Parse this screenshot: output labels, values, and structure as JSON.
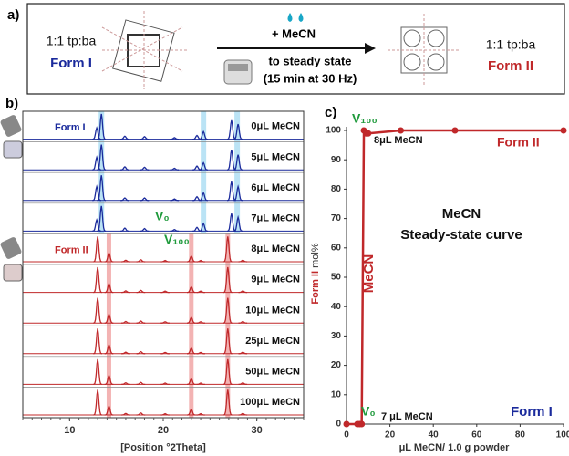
{
  "panel_a": {
    "label": "a)",
    "left": {
      "ratio": "1:1 tp:ba",
      "form": "Form I"
    },
    "arrow": {
      "reagent": "+ MeCN",
      "condition": "to steady state",
      "detail": "(15 min at 30 Hz)"
    },
    "right": {
      "ratio": "1:1 tp:ba",
      "form": "Form II"
    }
  },
  "chart_data": [
    {
      "type": "pxrd",
      "panel_label": "b)",
      "xlabel": "[Position °2Theta]",
      "xlim": [
        5,
        35
      ],
      "xticks": [
        10,
        20,
        30
      ],
      "form_i_bands": [
        13.4,
        24.3,
        27.9
      ],
      "form_i_band_color": "#a9dcf2",
      "form_ii_bands": [
        14.2,
        23.0,
        26.9
      ],
      "form_ii_band_color": "#f0a0a0",
      "annotations": [
        {
          "text": "Form I",
          "color": "#1a2a9c"
        },
        {
          "text": "Form II",
          "color": "#c0282a"
        },
        {
          "text": "V₀",
          "color": "#1f9a3c"
        },
        {
          "text": "V₁₀₀",
          "color": "#1f9a3c"
        }
      ],
      "traces": [
        {
          "name": "0μL MeCN",
          "color": "#1a2a9c",
          "peak_positions": [
            12.9,
            13.4,
            15.9,
            18.0,
            21.2,
            23.6,
            24.3,
            27.3,
            28.0
          ],
          "peak_heights": [
            45,
            100,
            12,
            10,
            6,
            15,
            30,
            75,
            60
          ]
        },
        {
          "name": "5μL MeCN",
          "color": "#1a2a9c",
          "peak_positions": [
            12.9,
            13.4,
            15.9,
            18.0,
            21.2,
            23.6,
            24.3,
            27.3,
            28.0
          ],
          "peak_heights": [
            50,
            100,
            12,
            10,
            6,
            15,
            28,
            80,
            60
          ]
        },
        {
          "name": "6μL MeCN",
          "color": "#1a2a9c",
          "peak_positions": [
            12.9,
            13.4,
            15.9,
            18.0,
            21.2,
            23.6,
            24.3,
            27.3,
            28.0
          ],
          "peak_heights": [
            55,
            100,
            10,
            10,
            6,
            15,
            30,
            75,
            55
          ]
        },
        {
          "name": "7μL MeCN",
          "color": "#1a2a9c",
          "peak_positions": [
            12.9,
            13.4,
            15.9,
            18.0,
            21.2,
            23.6,
            24.3,
            27.3,
            28.0
          ],
          "peak_heights": [
            45,
            100,
            12,
            10,
            6,
            15,
            30,
            70,
            55
          ]
        },
        {
          "name": "8μL MeCN",
          "color": "#c0282a",
          "peak_positions": [
            13.0,
            14.2,
            16.0,
            17.6,
            20.2,
            23.0,
            24.0,
            26.9,
            28.5
          ],
          "peak_heights": [
            100,
            35,
            6,
            8,
            5,
            22,
            5,
            100,
            6
          ]
        },
        {
          "name": "9μL MeCN",
          "color": "#c0282a",
          "peak_positions": [
            13.0,
            14.2,
            16.0,
            17.6,
            20.2,
            23.0,
            24.0,
            26.9,
            28.5
          ],
          "peak_heights": [
            100,
            35,
            6,
            8,
            5,
            22,
            5,
            100,
            6
          ]
        },
        {
          "name": "10μL MeCN",
          "color": "#c0282a",
          "peak_positions": [
            13.0,
            14.2,
            16.0,
            17.6,
            20.2,
            23.0,
            24.0,
            26.9,
            28.5
          ],
          "peak_heights": [
            100,
            35,
            6,
            8,
            5,
            22,
            5,
            100,
            6
          ]
        },
        {
          "name": "25μL MeCN",
          "color": "#c0282a",
          "peak_positions": [
            13.0,
            14.2,
            16.0,
            17.6,
            20.2,
            23.0,
            24.0,
            26.9,
            28.5
          ],
          "peak_heights": [
            100,
            35,
            6,
            8,
            5,
            22,
            5,
            100,
            6
          ]
        },
        {
          "name": "50μL MeCN",
          "color": "#c0282a",
          "peak_positions": [
            13.0,
            14.2,
            16.0,
            17.6,
            20.2,
            23.0,
            24.0,
            26.9,
            28.5
          ],
          "peak_heights": [
            100,
            35,
            6,
            8,
            5,
            22,
            5,
            100,
            6
          ]
        },
        {
          "name": "100μL MeCN",
          "color": "#c0282a",
          "peak_positions": [
            13.0,
            14.2,
            16.0,
            17.6,
            20.2,
            23.0,
            24.0,
            26.9,
            28.5
          ],
          "peak_heights": [
            100,
            35,
            6,
            8,
            5,
            22,
            5,
            100,
            6
          ]
        }
      ]
    },
    {
      "type": "line",
      "panel_label": "c)",
      "ylabel": [
        "Form II",
        "mol%"
      ],
      "xlabel": "μL MeCN/ 1.0 g powder",
      "xlim": [
        0,
        100
      ],
      "xticks": [
        0,
        20,
        40,
        60,
        80,
        100
      ],
      "ylim": [
        0,
        100
      ],
      "yticks": [
        0,
        10,
        20,
        30,
        40,
        50,
        60,
        70,
        80,
        90,
        100
      ],
      "series": [
        {
          "color": "#c0282a",
          "x": [
            0,
            5,
            6,
            7,
            8,
            9,
            10,
            25,
            50,
            100
          ],
          "values": [
            0,
            0,
            0,
            0,
            100,
            99,
            99,
            100,
            100,
            100
          ]
        }
      ],
      "annotations": [
        {
          "text": "V₁₀₀",
          "color": "#1f9a3c"
        },
        {
          "text": "8μL MeCN",
          "color": "#111111"
        },
        {
          "text": "Form II",
          "color": "#c0282a"
        },
        {
          "text": "MeCN",
          "color": "#111111"
        },
        {
          "text": "Steady-state curve",
          "color": "#111111"
        },
        {
          "text": "MeCN",
          "color": "#c0282a"
        },
        {
          "text": "V₀",
          "color": "#1f9a3c"
        },
        {
          "text": "7 μL MeCN",
          "color": "#111111"
        },
        {
          "text": "Form I",
          "color": "#1a2a9c"
        }
      ]
    }
  ]
}
